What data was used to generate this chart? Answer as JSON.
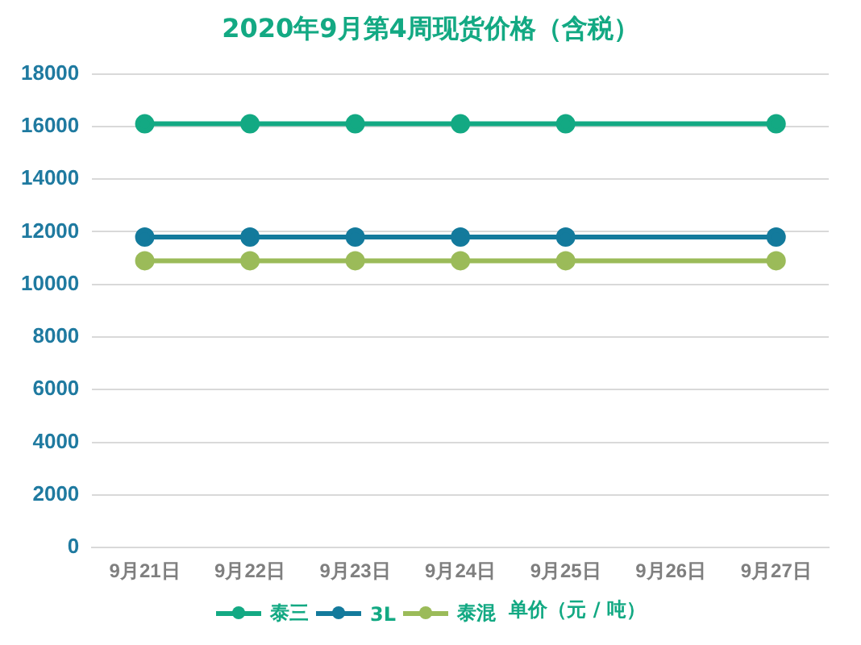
{
  "chart_data": {
    "type": "line",
    "title": "2020年9月第4周现货价格（含税）",
    "annotations": [
      "单价（元 / 吨）"
    ],
    "categories": [
      "9月21日",
      "9月22日",
      "9月23日",
      "9月24日",
      "9月25日",
      "9月26日",
      "9月27日"
    ],
    "series": [
      {
        "name": "泰三",
        "color": "#13a983",
        "values": [
          16100,
          16100,
          16100,
          16100,
          16100,
          null,
          16100
        ]
      },
      {
        "name": "3L",
        "color": "#137a9c",
        "values": [
          11800,
          11800,
          11800,
          11800,
          11800,
          null,
          11800
        ]
      },
      {
        "name": "泰混",
        "color": "#9bbb59",
        "values": [
          10900,
          10900,
          10900,
          10900,
          10900,
          null,
          10900
        ]
      }
    ],
    "ylim": [
      0,
      18000
    ],
    "yticks": [
      0,
      2000,
      4000,
      6000,
      8000,
      10000,
      12000,
      14000,
      16000,
      18000
    ],
    "grid": "y",
    "legend": "bottom",
    "marker": "circle",
    "line_style": "solid"
  }
}
